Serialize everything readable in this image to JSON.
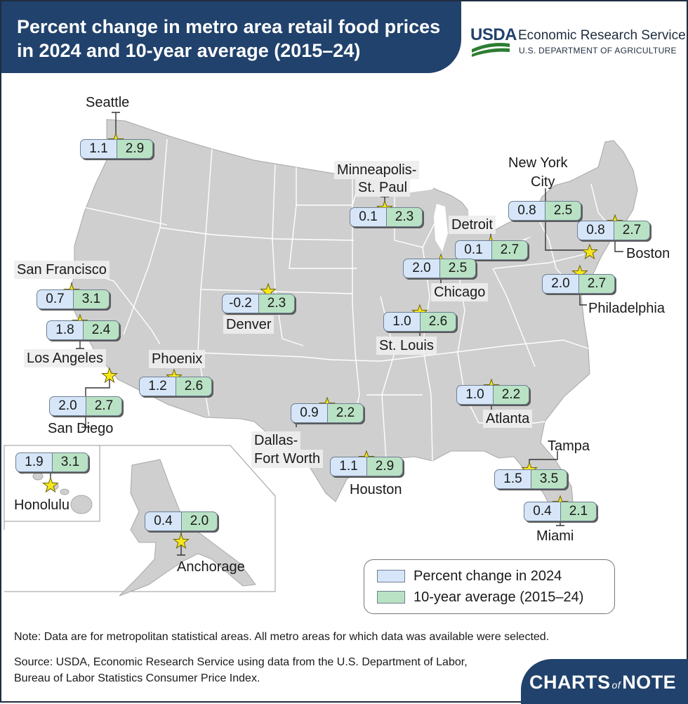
{
  "title": "Percent change in metro area retail food prices in 2024 and 10-year average (2015–24)",
  "usda": {
    "wordmark": "USDA",
    "agency": "Economic Research Service",
    "department": "U.S. DEPARTMENT OF AGRICULTURE"
  },
  "colors": {
    "header": "#21426c",
    "change_2024": "#d6e6f8",
    "avg_10yr": "#b9e2c4",
    "land": "#cfcfcf",
    "star": "#f6e71c"
  },
  "legend": {
    "change_2024": "Percent change in 2024",
    "avg_10yr": "10-year average (2015–24)"
  },
  "metros": [
    {
      "name": "Seattle",
      "change_2024": "1.1",
      "avg_10yr": "2.9"
    },
    {
      "name": "Minneapolis-St. Paul",
      "change_2024": "0.1",
      "avg_10yr": "2.3"
    },
    {
      "name": "New York City",
      "change_2024": "0.8",
      "avg_10yr": "2.5"
    },
    {
      "name": "Boston",
      "change_2024": "0.8",
      "avg_10yr": "2.7"
    },
    {
      "name": "Detroit",
      "change_2024": "0.1",
      "avg_10yr": "2.7"
    },
    {
      "name": "Chicago",
      "change_2024": "2.0",
      "avg_10yr": "2.5"
    },
    {
      "name": "Philadelphia",
      "change_2024": "2.0",
      "avg_10yr": "2.7"
    },
    {
      "name": "San Francisco",
      "change_2024": "0.7",
      "avg_10yr": "3.1"
    },
    {
      "name": "Denver",
      "change_2024": "-0.2",
      "avg_10yr": "2.3"
    },
    {
      "name": "Los Angeles",
      "change_2024": "1.8",
      "avg_10yr": "2.4"
    },
    {
      "name": "St. Louis",
      "change_2024": "1.0",
      "avg_10yr": "2.6"
    },
    {
      "name": "Phoenix",
      "change_2024": "1.2",
      "avg_10yr": "2.6"
    },
    {
      "name": "San Diego",
      "change_2024": "2.0",
      "avg_10yr": "2.7"
    },
    {
      "name": "Atlanta",
      "change_2024": "1.0",
      "avg_10yr": "2.2"
    },
    {
      "name": "Dallas-Fort Worth",
      "change_2024": "0.9",
      "avg_10yr": "2.2"
    },
    {
      "name": "Tampa",
      "change_2024": "1.5",
      "avg_10yr": "3.5"
    },
    {
      "name": "Houston",
      "change_2024": "1.1",
      "avg_10yr": "2.9"
    },
    {
      "name": "Honolulu",
      "change_2024": "1.9",
      "avg_10yr": "3.1"
    },
    {
      "name": "Miami",
      "change_2024": "0.4",
      "avg_10yr": "2.1"
    },
    {
      "name": "Anchorage",
      "change_2024": "0.4",
      "avg_10yr": "2.0"
    }
  ],
  "labels": {
    "minneapolis_1": "Minneapolis-",
    "minneapolis_2": "St. Paul",
    "nyc_1": "New York",
    "nyc_2": "City",
    "dallas_1": "Dallas-",
    "dallas_2": "Fort Worth"
  },
  "note": "Note: Data are for metropolitan statistical areas. All metro areas for which data was available were selected.",
  "source": "Source: USDA, Economic Research Service using data from the U.S. Department of Labor, Bureau of Labor Statistics Consumer Price Index.",
  "brand": {
    "charts": "CHARTS",
    "of": "of",
    "note": "NOTE"
  }
}
